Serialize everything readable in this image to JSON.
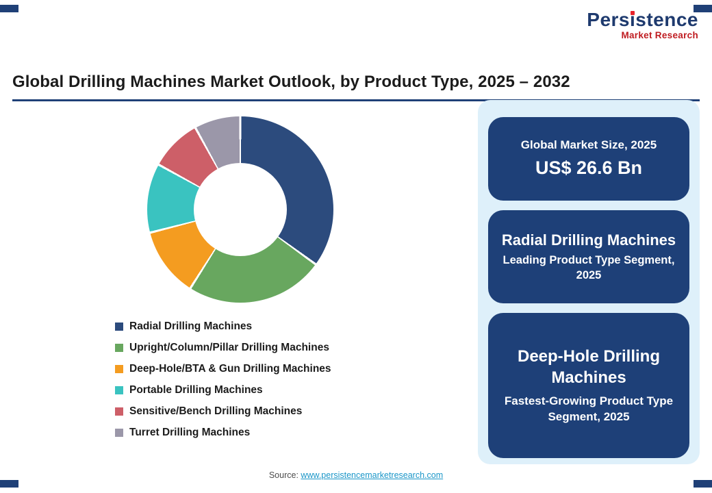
{
  "page": {
    "title": "Global Drilling Machines Market Outlook, by Product Type, 2025 – 2032",
    "source_label": "Source:",
    "source_link": "www.persistencemarketresearch.com"
  },
  "logo": {
    "part1": "Pers",
    "i": "i",
    "part2": "stence",
    "subtitle": "Market Research"
  },
  "chart_data": {
    "type": "pie",
    "donut": true,
    "title": "Global Drilling Machines Market Outlook, by Product Type, 2025 – 2032",
    "categories": [
      "Radial Drilling Machines",
      "Upright/Column/Pillar Drilling Machines",
      "Deep-Hole/BTA & Gun Drilling Machines",
      "Portable Drilling Machines",
      "Sensitive/Bench Drilling Machines",
      "Turret Drilling Machines"
    ],
    "values": [
      35,
      24,
      12,
      12,
      9,
      8
    ],
    "unit": "% share (estimated visually, no data labels shown)",
    "colors": [
      "#2c4b7d",
      "#68a75f",
      "#f49c20",
      "#3ac3c0",
      "#cd5f68",
      "#9b97a9"
    ],
    "start_angle_deg": 0,
    "legend_position": "bottom-left"
  },
  "panel": {
    "cards": [
      {
        "line1": "Global Market Size, 2025",
        "line2": "US$ 26.6 Bn"
      },
      {
        "line1": "Radial Drilling Machines",
        "line2": "Leading Product Type Segment, 2025"
      },
      {
        "line1": "Deep-Hole Drilling Machines",
        "line2": "Fastest-Growing Product Type Segment, 2025"
      }
    ]
  },
  "colors": {
    "accent_navy": "#1f4077",
    "card_navy": "#1e4078",
    "panel_bg": "#def0fa",
    "logo_navy": "#1e3a6e",
    "logo_red": "#bf1b20",
    "link_teal": "#1a96c8"
  }
}
